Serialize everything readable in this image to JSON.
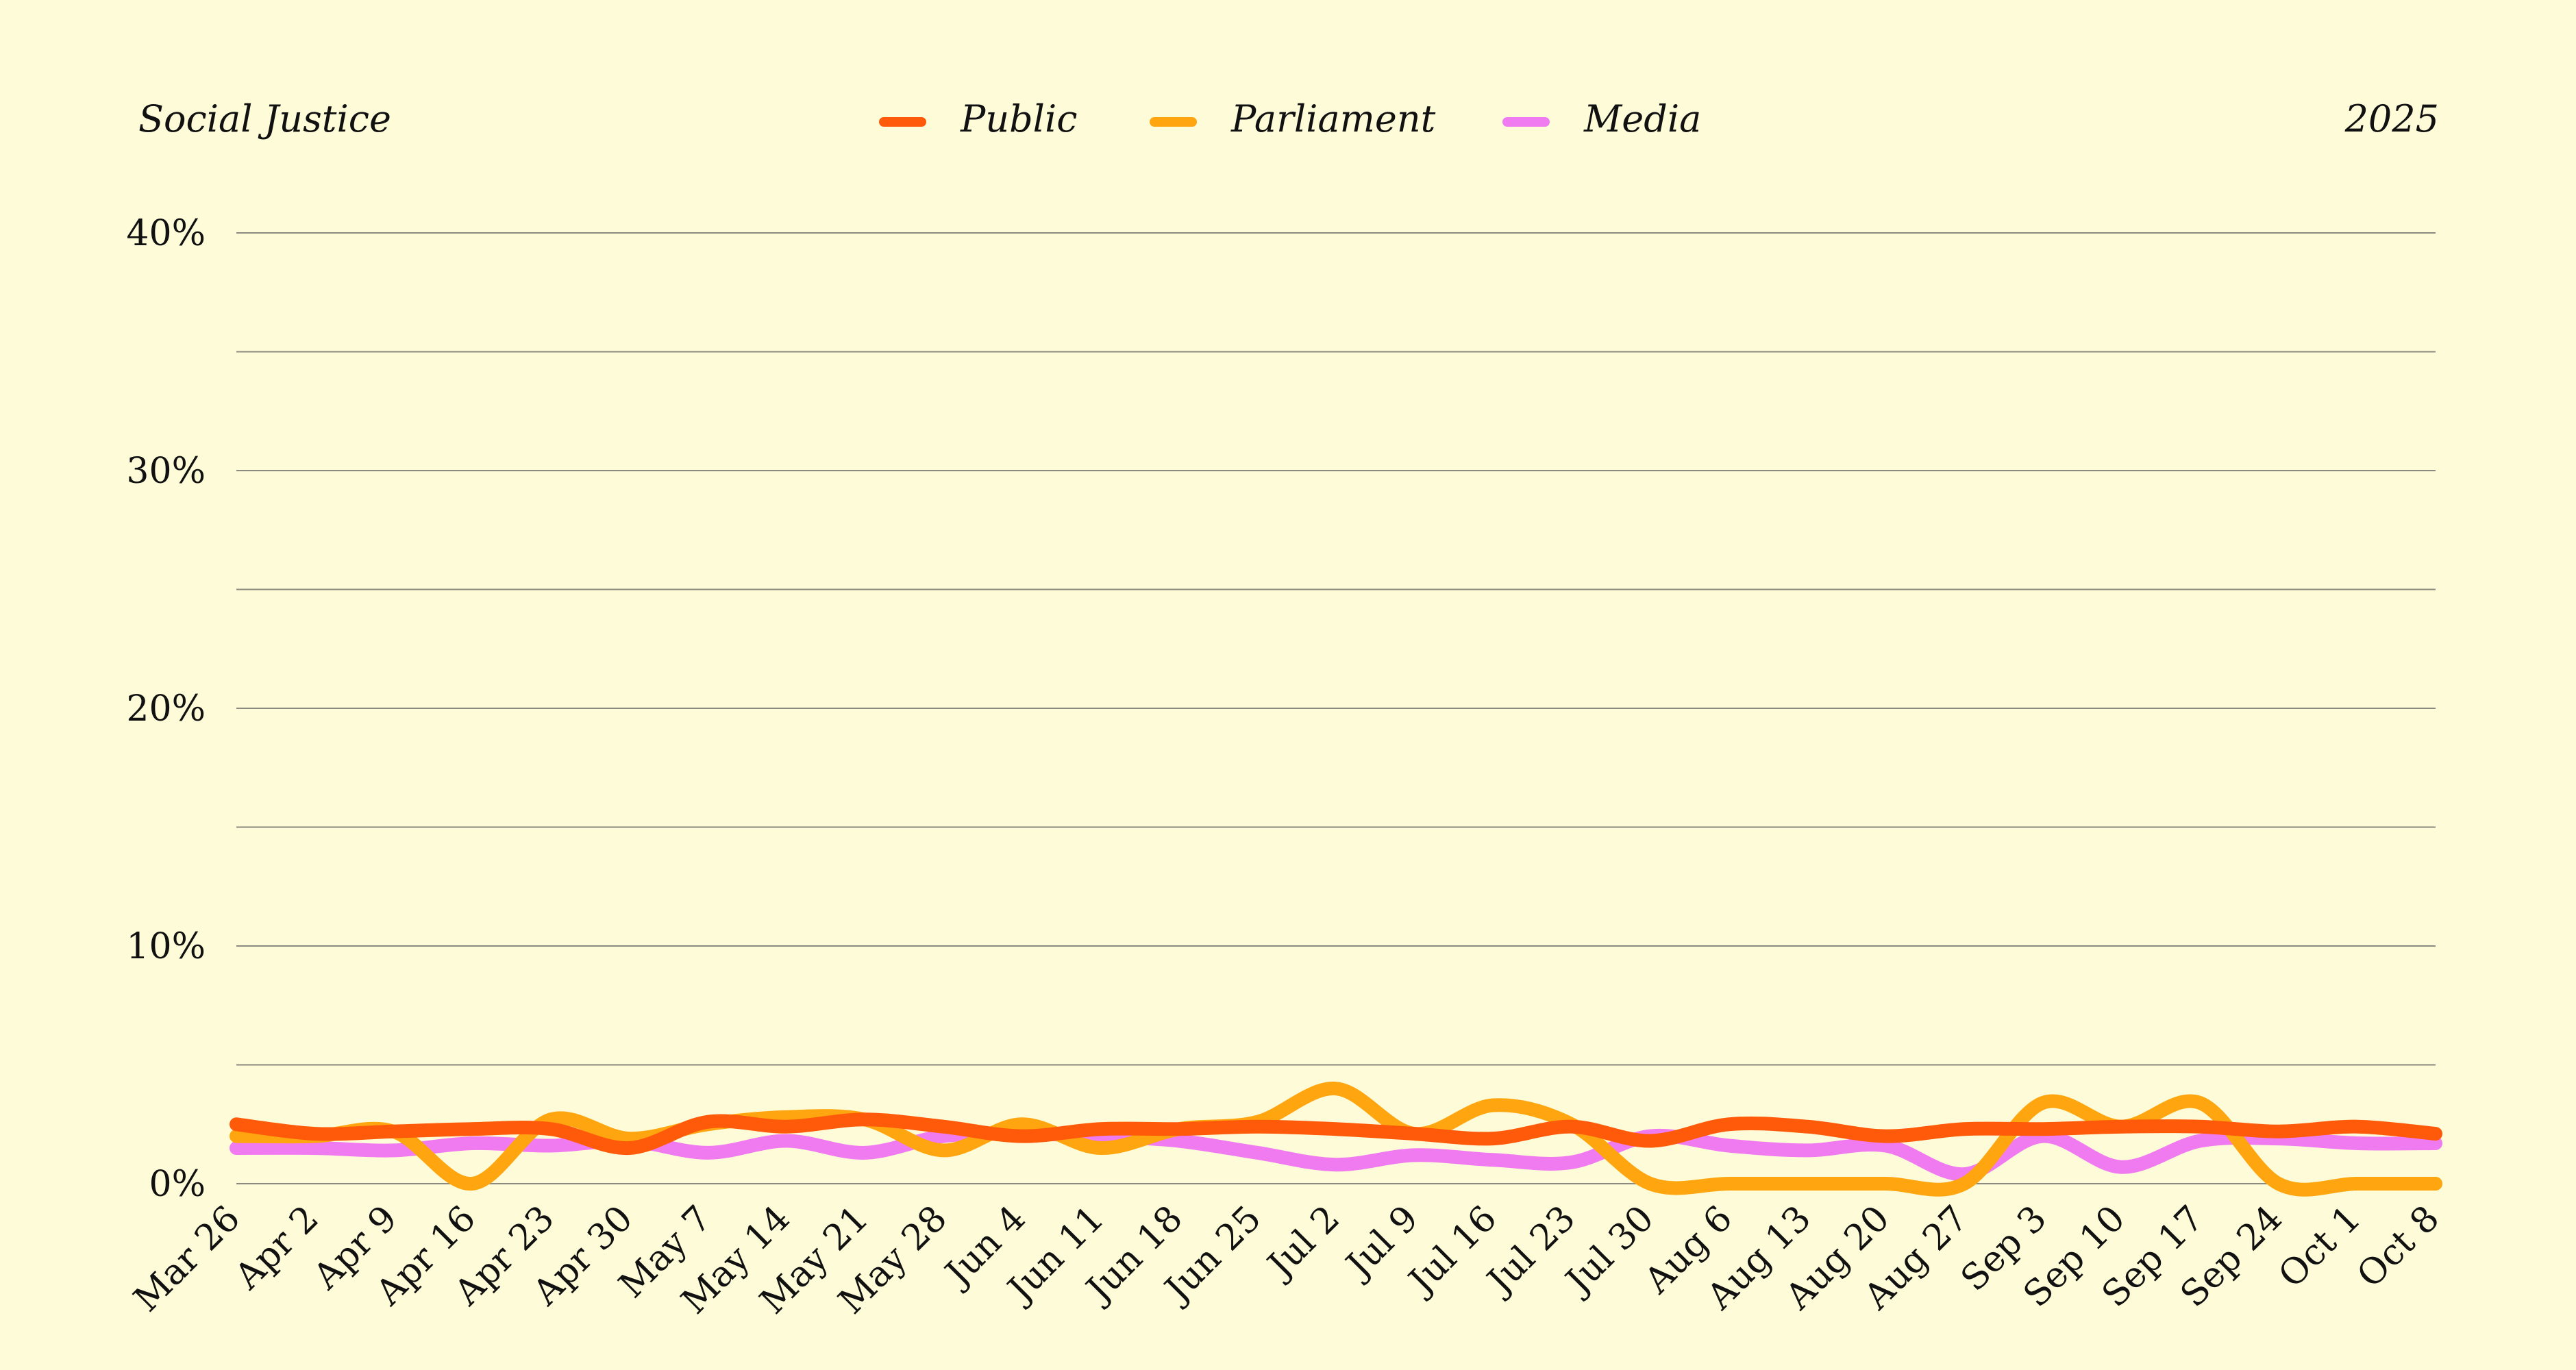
{
  "header": {
    "left_label": "Social Justice",
    "right_label": "2025"
  },
  "chart_data": {
    "type": "line",
    "title": "Social Justice",
    "year_label": "2025",
    "xlabel": "",
    "ylabel": "",
    "ylim": [
      0,
      40
    ],
    "yticks": [
      0,
      10,
      20,
      30,
      40
    ],
    "ytick_labels": [
      "0%",
      "10%",
      "20%",
      "30%",
      "40%"
    ],
    "grid": true,
    "legend_position": "top-center",
    "categories": [
      "Mar 26",
      "Apr 2",
      "Apr 9",
      "Apr 16",
      "Apr 23",
      "Apr 30",
      "May 7",
      "May 14",
      "May 21",
      "May 28",
      "Jun 4",
      "Jun 11",
      "Jun 18",
      "Jun 25",
      "Jul 2",
      "Jul 9",
      "Jul 16",
      "Jul 23",
      "Jul 30",
      "Aug 6",
      "Aug 13",
      "Aug 20",
      "Aug 27",
      "Sep 3",
      "Sep 10",
      "Sep 17",
      "Sep 24",
      "Oct 1",
      "Oct 8"
    ],
    "series": [
      {
        "name": "Public",
        "color": "#ff5a0a",
        "values": [
          2.5,
          2.1,
          2.2,
          2.3,
          2.3,
          1.5,
          2.6,
          2.4,
          2.7,
          2.4,
          2.0,
          2.3,
          2.3,
          2.4,
          2.3,
          2.1,
          1.9,
          2.4,
          1.8,
          2.5,
          2.4,
          2.0,
          2.3,
          2.3,
          2.4,
          2.4,
          2.2,
          2.4,
          2.1
        ]
      },
      {
        "name": "Parliament",
        "color": "#ffa50f",
        "values": [
          2.0,
          2.0,
          2.2,
          0.0,
          2.7,
          1.9,
          2.5,
          2.8,
          2.7,
          1.4,
          2.5,
          1.5,
          2.3,
          2.6,
          4.0,
          2.1,
          3.3,
          2.5,
          0.0,
          0.0,
          0.0,
          0.0,
          0.0,
          3.4,
          2.4,
          3.4,
          0.0,
          0.0,
          0.0
        ]
      },
      {
        "name": "Media",
        "color": "#f07af0",
        "values": [
          1.5,
          1.5,
          1.4,
          1.7,
          1.6,
          1.8,
          1.3,
          1.8,
          1.3,
          2.0,
          2.1,
          2.0,
          1.8,
          1.3,
          0.8,
          1.2,
          1.0,
          0.9,
          2.0,
          1.6,
          1.4,
          1.6,
          0.4,
          2.0,
          0.7,
          1.8,
          1.9,
          1.7,
          1.7
        ]
      }
    ]
  }
}
